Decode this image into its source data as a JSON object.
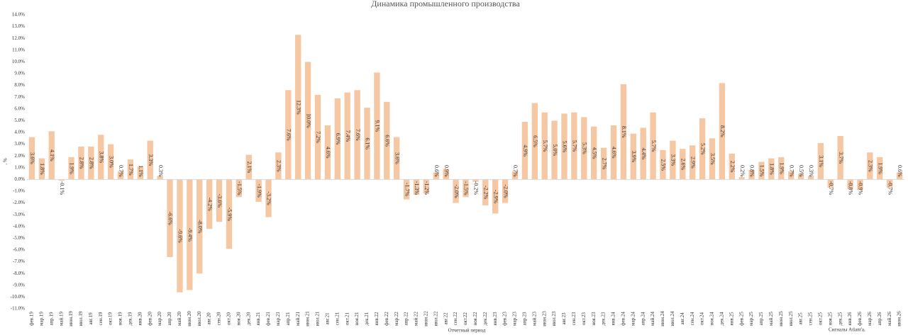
{
  "chart_data": {
    "type": "bar",
    "title": "Динамика промышленного производства",
    "y_label": ", %",
    "x_label": "Отчетный период",
    "annotation": "Сигналы Atlant'a,",
    "color": "#f6c7a3",
    "grid": false,
    "categories": [
      "фев.19",
      "мар.19",
      "апр.19",
      "май.19",
      "июн.19",
      "июл.19",
      "авг.19",
      "сен.19",
      "окт.19",
      "ноя.19",
      "дек.19",
      "янв.20",
      "фев.20",
      "мар.20",
      "апр.20",
      "май.20",
      "июн.20",
      "июл.20",
      "авг.20",
      "сен.20",
      "окт.20",
      "ноя.20",
      "дек.20",
      "янв.21",
      "фев.21",
      "мар.21",
      "апр.21",
      "май.21",
      "июн.21",
      "июл.21",
      "авг.21",
      "сен.21",
      "окт.21",
      "ноя.21",
      "дек.21",
      "янв.22",
      "фев.22",
      "мар.22",
      "апр.22",
      "май.22",
      "июн.22",
      "июл.22",
      "авг.22",
      "сен.22",
      "окт.22",
      "ноя.22",
      "дек.22",
      "янв.23",
      "фев.23",
      "мар.23",
      "апр.23",
      "май.23",
      "июн.23",
      "июл.23",
      "авг.23",
      "сен.23",
      "окт.23",
      "ноя.23",
      "дек.23",
      "янв.24",
      "фев.24",
      "мар.24",
      "апр.24",
      "май.24",
      "июн.24",
      "июл.24",
      "авг.24",
      "сен.24",
      "окт.24",
      "ноя.24",
      "дек.24",
      "янв.25",
      "фев.25",
      "мар.25",
      "апр.25",
      "май.25",
      "июн.25",
      "июл.25",
      "авг.25",
      "сен.25",
      "окт.25",
      "ноя.25",
      "дек.25",
      "янв.26",
      "фев.26",
      "мар.26",
      "апр.26",
      "май.26",
      "июн.26"
    ],
    "values": [
      3.6,
      1.8,
      4.1,
      -0.1,
      1.9,
      2.8,
      2.8,
      3.8,
      3.0,
      0.7,
      1.7,
      1.1,
      3.3,
      0.3,
      -6.6,
      -9.6,
      -9.4,
      -8.0,
      -4.2,
      -3.6,
      -5.9,
      -1.5,
      2.1,
      -1.9,
      -3.2,
      2.3,
      7.6,
      12.3,
      10.0,
      7.2,
      4.6,
      6.9,
      7.4,
      7.6,
      6.1,
      9.1,
      6.6,
      3.6,
      -1.7,
      -1.3,
      -1.2,
      0.6,
      0.9,
      -2.0,
      -1.5,
      -0.2,
      -2.2,
      -2.9,
      -2.0,
      0.7,
      4.9,
      6.5,
      5.7,
      5.0,
      5.6,
      5.7,
      5.3,
      4.5,
      2.7,
      4.6,
      8.1,
      3.9,
      4.4,
      5.7,
      2.5,
      3.3,
      2.6,
      2.9,
      5.2,
      3.5,
      8.2,
      2.2,
      0.2,
      0.8,
      1.5,
      1.8,
      1.9,
      0.7,
      0.5,
      0.3,
      3.1,
      -0.7,
      3.7,
      -0.8,
      -0.9,
      2.3,
      1.9,
      -0.7,
      0.6
    ],
    "value_labels": [
      "3.6%",
      "1.8%",
      "4.1%",
      "-0.1%",
      "1.9%",
      "2.8%",
      "2.8%",
      "3.8%",
      "3.0%",
      "0.7%",
      "1.7%",
      "1.1%",
      "3.3%",
      "0.3%",
      "-6.6%",
      "-9.6%",
      "-9.4%",
      "-8.0%",
      "-4.2%",
      "-3.6%",
      "-5.9%",
      "-1.5%",
      "2.1%",
      "-1.9%",
      "-3.2%",
      "2.3%",
      "7.6%",
      "12.3%",
      "10.0%",
      "7.2%",
      "4.6%",
      "6.9%",
      "7.4%",
      "7.6%",
      "6.1%",
      "9.1%",
      "6.6%",
      "3.6%",
      "-1.7%",
      "-1.3%",
      "-1.2%",
      "0.6%",
      "0.9%",
      "-2.0%",
      "-1.5%",
      "-0.2%",
      "-2.2%",
      "-2.9%",
      "-2.0%",
      "0.7%",
      "4.9%",
      "6.5%",
      "5.7%",
      "5.0%",
      "5.6%",
      "5.7%",
      "5.3%",
      "4.5%",
      "2.7%",
      "4.6%",
      "8.1%",
      "3.9%",
      "4.4%",
      "5.7%",
      "2.5%",
      "3.3%",
      "2.6%",
      "2.9%",
      "5.2%",
      "3.5%",
      "8.2%",
      "2.2%",
      "0.2%",
      "0.8%",
      "1.5%",
      "1.8%",
      "1.9%",
      "0.7%",
      "0.5%",
      "0.3%",
      "3.1%",
      "-0.7%",
      "3.7%",
      "-0.8%",
      "-0.9%",
      "2.3%",
      "1.9%",
      "-0.7%",
      "0.6%"
    ],
    "ylim": [
      -11,
      14
    ],
    "yticks": [
      {
        "value": 14,
        "label": "14.0%"
      },
      {
        "value": 13,
        "label": "13.0%"
      },
      {
        "value": 12,
        "label": "12.0%"
      },
      {
        "value": 11,
        "label": "11.0%"
      },
      {
        "value": 10,
        "label": "10.0%"
      },
      {
        "value": 9,
        "label": "9.0%"
      },
      {
        "value": 8,
        "label": "8.0%"
      },
      {
        "value": 7,
        "label": "7.0%"
      },
      {
        "value": 6,
        "label": "6.0%"
      },
      {
        "value": 5,
        "label": "5.0%"
      },
      {
        "value": 4,
        "label": "4.0%"
      },
      {
        "value": 3,
        "label": "3.0%"
      },
      {
        "value": 2,
        "label": "2.0%"
      },
      {
        "value": 1,
        "label": "1.0%"
      },
      {
        "value": 0,
        "label": "0.0%"
      },
      {
        "value": -1,
        "label": "-1.0%"
      },
      {
        "value": -2,
        "label": "-2.0%"
      },
      {
        "value": -3,
        "label": "-3.0%"
      },
      {
        "value": -4,
        "label": "-4.0%"
      },
      {
        "value": -5,
        "label": "-5.0%"
      },
      {
        "value": -6,
        "label": "-6.0%"
      },
      {
        "value": -7,
        "label": "-7.0%"
      },
      {
        "value": -8,
        "label": "-8.0%"
      },
      {
        "value": -9,
        "label": "-9.0%"
      },
      {
        "value": -10,
        "label": "-10.0%"
      },
      {
        "value": -11,
        "label": "-11.0%"
      }
    ]
  }
}
